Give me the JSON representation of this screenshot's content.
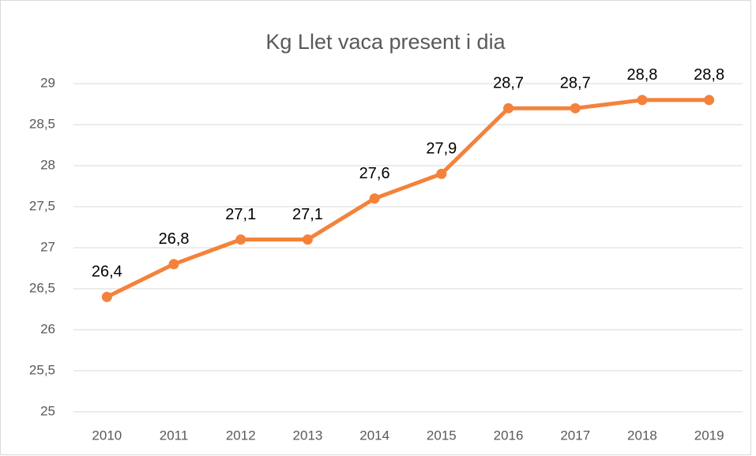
{
  "chart_data": {
    "type": "line",
    "title": "Kg Llet vaca present i dia",
    "categories": [
      "2010",
      "2011",
      "2012",
      "2013",
      "2014",
      "2015",
      "2016",
      "2017",
      "2018",
      "2019"
    ],
    "series": [
      {
        "name": "Kg Llet vaca present i dia",
        "color": "#f4823c",
        "values": [
          26.4,
          26.8,
          27.1,
          27.1,
          27.6,
          27.9,
          28.7,
          28.7,
          28.8,
          28.8
        ],
        "value_labels": [
          "26,4",
          "26,8",
          "27,1",
          "27,1",
          "27,6",
          "27,9",
          "28,7",
          "28,7",
          "28,8",
          "28,8"
        ]
      }
    ],
    "ylim": [
      25,
      29
    ],
    "yticks": [
      25,
      {
        "value": 25.5,
        "label": "25,5"
      },
      26,
      {
        "value": 26.5,
        "label": "26,5"
      },
      27,
      {
        "value": 27.5,
        "label": "27,5"
      },
      28,
      {
        "value": 28.5,
        "label": "28,5"
      },
      29
    ],
    "grid": true
  }
}
